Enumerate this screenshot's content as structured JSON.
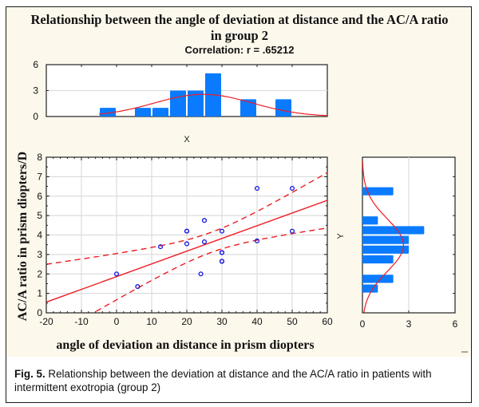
{
  "figure": {
    "title_line1": "Relationship between the angle of deviation at distance and the AC/A ratio",
    "title_line2": "in group 2",
    "subtitle": "Correlation: r = .65212",
    "caption_label": "Fig. 5.",
    "caption_text": " Relationship between the deviation at distance and the AC/A ratio in patients with intermittent exotropia (group 2)",
    "colors": {
      "panel_bg": "#fdf8ec",
      "bar": "#0a7bff",
      "curve": "#ee1c24",
      "point": "#1414e6",
      "grid": "#dcdcdc"
    }
  },
  "chart_data": [
    {
      "type": "scatter",
      "title": "Relationship between the angle of deviation at distance and the AC/A ratio in group 2",
      "subtitle": "Correlation: r = .65212",
      "xlabel": "angle of deviation an distance in prism diopters",
      "ylabel": "AC/A ratio in prism diopters/D",
      "xlim": [
        -20,
        60
      ],
      "ylim": [
        0,
        8
      ],
      "xticks": [
        -20,
        -10,
        0,
        10,
        20,
        30,
        40,
        50,
        60
      ],
      "yticks": [
        0,
        1,
        2,
        3,
        4,
        5,
        6,
        7,
        8
      ],
      "grid": true,
      "points": [
        {
          "x": 0,
          "y": 2.0
        },
        {
          "x": 6,
          "y": 1.35
        },
        {
          "x": 12.5,
          "y": 3.4
        },
        {
          "x": 20,
          "y": 4.2
        },
        {
          "x": 20,
          "y": 4.2
        },
        {
          "x": 20,
          "y": 3.55
        },
        {
          "x": 24,
          "y": 2.0
        },
        {
          "x": 25,
          "y": 4.75
        },
        {
          "x": 25,
          "y": 3.65
        },
        {
          "x": 30,
          "y": 4.2
        },
        {
          "x": 30,
          "y": 3.1
        },
        {
          "x": 30,
          "y": 3.1
        },
        {
          "x": 30,
          "y": 2.65
        },
        {
          "x": 30,
          "y": 2.65
        },
        {
          "x": 40,
          "y": 6.4
        },
        {
          "x": 40,
          "y": 3.7
        },
        {
          "x": 50,
          "y": 6.4
        },
        {
          "x": 50,
          "y": 4.2
        }
      ],
      "regression": {
        "intercept": 1.86,
        "slope": 0.0654,
        "ci_upper_at_xmin": 2.5,
        "ci_upper_at_xmax": 7.2,
        "ci_lower_at_xmax": 4.35,
        "ci_lower_zero_crossing_x": -5.5
      }
    },
    {
      "type": "bar",
      "title": "X",
      "orientation": "vertical",
      "xlim": [
        -20,
        60
      ],
      "ylim": [
        0,
        6
      ],
      "yticks": [
        0,
        3,
        6
      ],
      "bin_width": 5,
      "bin_centers": [
        -2.5,
        7.5,
        12.5,
        17.5,
        22.5,
        27.5,
        37.5,
        47.5
      ],
      "values": [
        1,
        1,
        1,
        3,
        3,
        5,
        2,
        2
      ],
      "normal_curve": {
        "mean": 24.7,
        "sd": 14.0
      }
    },
    {
      "type": "bar",
      "title": "Y",
      "orientation": "horizontal",
      "ylim": [
        0,
        8
      ],
      "xlim": [
        0,
        6
      ],
      "xticks": [
        0,
        3,
        6
      ],
      "bin_width": 0.5,
      "bin_centers": [
        6.25,
        4.75,
        4.25,
        3.75,
        3.25,
        2.75,
        1.75,
        1.25
      ],
      "values": [
        2,
        1,
        4,
        3,
        3,
        2,
        2,
        1
      ],
      "normal_curve": {
        "mean": 3.48,
        "sd": 1.35
      }
    }
  ]
}
